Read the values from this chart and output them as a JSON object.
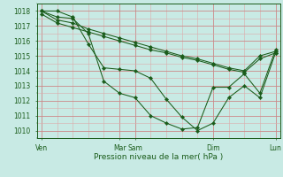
{
  "xlabel": "Pression niveau de la mer( hPa )",
  "ylim": [
    1009.5,
    1018.5
  ],
  "yticks": [
    1010,
    1011,
    1012,
    1013,
    1014,
    1015,
    1016,
    1017,
    1018
  ],
  "bg_color": "#c8eae4",
  "grid_color_major": "#cc8888",
  "grid_color_minor": "#ddaaaa",
  "line_color": "#1a5c1a",
  "line1": [
    1018.0,
    1018.0,
    1017.6,
    1015.8,
    1014.2,
    1014.1,
    1014.0,
    1013.5,
    1012.1,
    1010.9,
    1010.0,
    1010.5,
    1012.2,
    1013.0,
    1012.2,
    1015.2
  ],
  "line2": [
    1018.0,
    1017.6,
    1017.5,
    1016.5,
    1013.3,
    1012.5,
    1012.2,
    1011.0,
    1010.5,
    1010.1,
    1010.2,
    1012.9,
    1012.9,
    1013.8,
    1012.5,
    1015.4
  ],
  "line3": [
    1018.0,
    1017.4,
    1017.2,
    1016.8,
    1016.5,
    1016.2,
    1015.9,
    1015.6,
    1015.3,
    1015.0,
    1014.8,
    1014.5,
    1014.2,
    1014.0,
    1015.0,
    1015.3
  ],
  "line4": [
    1017.8,
    1017.2,
    1016.9,
    1016.6,
    1016.3,
    1016.0,
    1015.7,
    1015.4,
    1015.2,
    1014.9,
    1014.7,
    1014.4,
    1014.1,
    1013.9,
    1014.8,
    1015.2
  ],
  "n_points": 16,
  "xlim": [
    -0.3,
    15.3
  ],
  "major_xtick_pos": [
    0,
    5,
    6,
    11,
    15
  ],
  "major_xtick_labels": [
    "Ven",
    "Mar",
    "Sam",
    "Dim",
    "Lun"
  ],
  "xlabel_fontsize": 6.5,
  "ytick_fontsize": 5.5,
  "xtick_fontsize": 5.5
}
